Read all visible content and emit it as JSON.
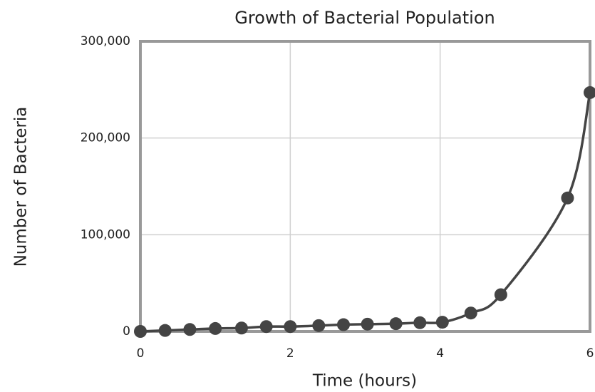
{
  "chart_data": {
    "type": "scatter",
    "title": "Growth of Bacterial Population",
    "x_label": "Time (hours)",
    "y_label": "Number of Bacteria",
    "x": [
      0,
      0.33,
      0.66,
      1.0,
      1.35,
      1.68,
      2.0,
      2.38,
      2.71,
      3.03,
      3.41,
      3.73,
      4.03,
      4.41,
      4.81,
      5.7,
      6.0
    ],
    "values": [
      0,
      1000,
      2000,
      3000,
      3500,
      5000,
      5000,
      6000,
      7000,
      7500,
      8000,
      9000,
      9500,
      19000,
      38000,
      138000,
      247000
    ],
    "color": "#444444",
    "xlim": [
      0,
      6
    ],
    "xticks": [
      0,
      2,
      4,
      6
    ],
    "ylim": [
      0,
      300000
    ],
    "yticks": [
      0,
      {
        "value": 100000,
        "label": "100,000"
      },
      {
        "value": 200000,
        "label": "200,000"
      },
      {
        "value": 300000,
        "label": "300,000"
      }
    ],
    "grid": true
  }
}
